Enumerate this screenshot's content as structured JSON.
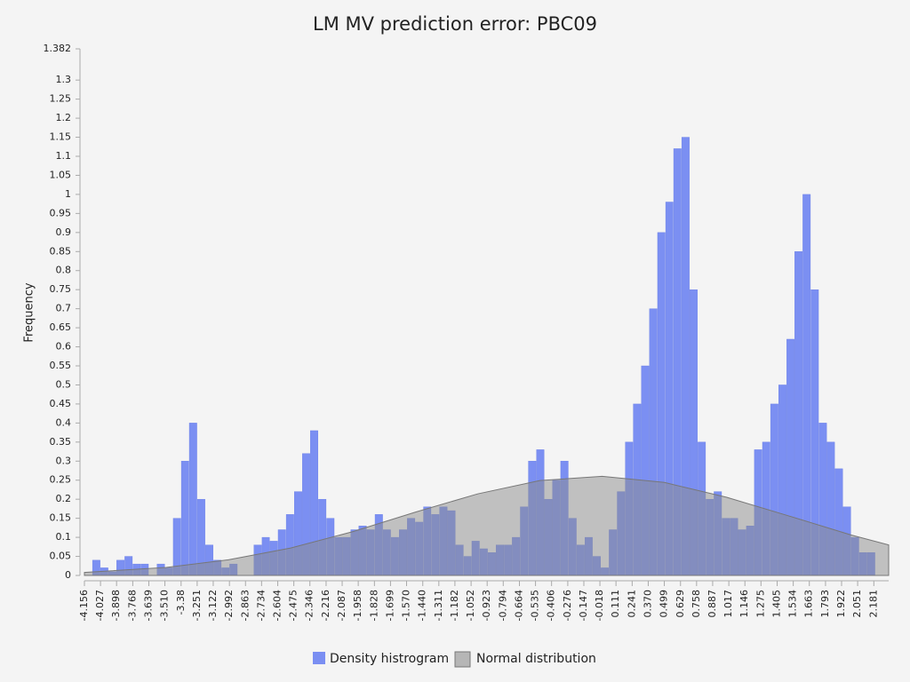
{
  "chart_data": {
    "type": "histogram",
    "title": "LM MV prediction error: PBC09",
    "y_label": "Frequency",
    "xlim": [
      -4.156,
      2.3
    ],
    "ylim": [
      0,
      1.382
    ],
    "xticks": [
      -4.156,
      -4.027,
      -3.898,
      -3.768,
      -3.639,
      {
        "value": -3.51,
        "label": "-3.510"
      },
      -3.38,
      -3.251,
      -3.122,
      -2.992,
      -2.863,
      -2.734,
      -2.604,
      -2.475,
      -2.346,
      -2.216,
      -2.087,
      -1.958,
      -1.828,
      -1.699,
      {
        "value": -1.57,
        "label": "-1.570"
      },
      {
        "value": -1.44,
        "label": "-1.440"
      },
      -1.311,
      -1.182,
      -1.052,
      -0.923,
      -0.794,
      -0.664,
      -0.535,
      -0.406,
      -0.276,
      -0.147,
      -0.018,
      0.111,
      0.241,
      {
        "value": 0.37,
        "label": "0.370"
      },
      0.499,
      0.629,
      0.758,
      0.887,
      1.017,
      1.146,
      1.275,
      1.405,
      1.534,
      1.663,
      1.793,
      1.922,
      2.051,
      2.181
    ],
    "yticks": [
      0,
      0.05,
      0.1,
      0.15,
      0.2,
      0.25,
      0.3,
      0.35,
      0.4,
      0.45,
      0.5,
      0.55,
      0.6,
      0.65,
      0.7,
      0.75,
      0.8,
      0.85,
      0.9,
      0.95,
      1,
      1.05,
      1.1,
      1.15,
      1.2,
      1.25,
      1.3,
      1.382
    ],
    "bins": [
      -4.156,
      -4.091,
      -4.026,
      -3.962,
      -3.897,
      -3.832,
      -3.767,
      -3.702,
      -3.638,
      -3.573,
      -3.508,
      -3.443,
      -3.378,
      -3.314,
      -3.249,
      -3.184,
      -3.119,
      -3.054,
      -2.99,
      -2.925,
      -2.86,
      -2.795,
      -2.73,
      -2.666,
      -2.601,
      -2.536,
      -2.471,
      -2.406,
      -2.342,
      -2.277,
      -2.212,
      -2.147,
      -2.082,
      -2.018,
      -1.953,
      -1.888,
      -1.823,
      -1.758,
      -1.694,
      -1.629,
      -1.564,
      -1.499,
      -1.434,
      -1.37,
      -1.305,
      -1.24,
      -1.175,
      -1.11,
      -1.046,
      -0.981,
      -0.916,
      -0.851,
      -0.786,
      -0.722,
      -0.657,
      -0.592,
      -0.527,
      -0.462,
      -0.398,
      -0.333,
      -0.268,
      -0.203,
      -0.138,
      -0.074,
      -0.009,
      0.056,
      0.121,
      0.186,
      0.25,
      0.315,
      0.38,
      0.445,
      0.51,
      0.574,
      0.639,
      0.704,
      0.769,
      0.834,
      0.898,
      0.963,
      1.028,
      1.093,
      1.158,
      1.222,
      1.287,
      1.352,
      1.417,
      1.482,
      1.546,
      1.611,
      1.676,
      1.741,
      1.806,
      1.87,
      1.935,
      2.0,
      2.065,
      2.13,
      2.194,
      2.259
    ],
    "series": [
      {
        "type": "histogram",
        "name": "Density histrogram",
        "color": "#7b8ff2",
        "values": [
          0,
          0.04,
          0.02,
          0.01,
          0.04,
          0.05,
          0.03,
          0.03,
          0,
          0.03,
          0.02,
          0.15,
          0.3,
          0.4,
          0.2,
          0.08,
          0.04,
          0.02,
          0.03,
          0,
          0,
          0.08,
          0.1,
          0.09,
          0.12,
          0.16,
          0.22,
          0.32,
          0.38,
          0.2,
          0.15,
          0.1,
          0.1,
          0.12,
          0.13,
          0.12,
          0.16,
          0.12,
          0.1,
          0.12,
          0.15,
          0.14,
          0.18,
          0.16,
          0.18,
          0.17,
          0.08,
          0.05,
          0.09,
          0.07,
          0.06,
          0.08,
          0.08,
          0.1,
          0.18,
          0.3,
          0.33,
          0.2,
          0.25,
          0.3,
          0.15,
          0.08,
          0.1,
          0.05,
          0.02,
          0.12,
          0.22,
          0.35,
          0.45,
          0.55,
          0.7,
          0.9,
          0.98,
          1.12,
          1.15,
          0.75,
          0.35,
          0.2,
          0.22,
          0.15,
          0.15,
          0.12,
          0.13,
          0.33,
          0.35,
          0.45,
          0.5,
          0.62,
          0.85,
          1.0,
          0.75,
          0.4,
          0.35,
          0.28,
          0.18,
          0.1,
          0.06,
          0.06,
          0
        ]
      },
      {
        "type": "area",
        "name": "Normal distribution",
        "color": "#8c8c8c",
        "x": [
          -4.156,
          -3.5,
          -3.0,
          -2.5,
          -2.0,
          -1.5,
          -1.0,
          -0.5,
          0,
          0.5,
          1.0,
          1.5,
          2.0,
          2.3
        ],
        "values": [
          0.008,
          0.021,
          0.041,
          0.072,
          0.115,
          0.166,
          0.214,
          0.249,
          0.26,
          0.244,
          0.205,
          0.156,
          0.106,
          0.08
        ]
      }
    ]
  }
}
